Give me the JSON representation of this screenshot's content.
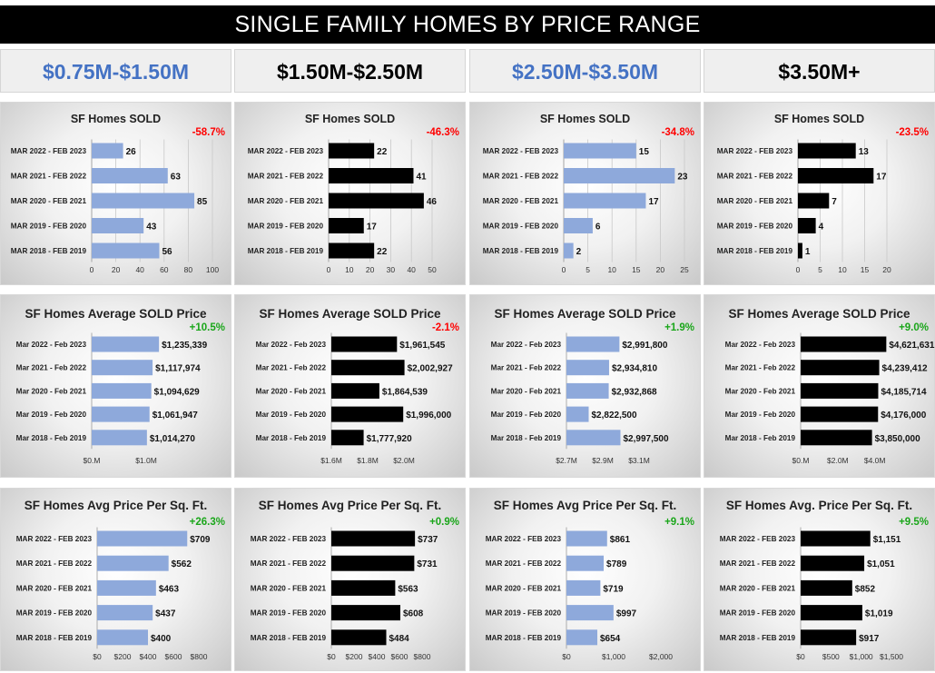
{
  "title": "SINGLE FAMILY HOMES BY PRICE RANGE",
  "colors": {
    "blue_bar": "#8ea9db",
    "black_bar": "#000000",
    "header_blue": "#4472c4",
    "negative": "#ff0000",
    "positive": "#1aa61a"
  },
  "headers": [
    {
      "label": "$0.75M-$1.50M",
      "color": "blue"
    },
    {
      "label": "$1.50M-$2.50M",
      "color": "black"
    },
    {
      "label": "$2.50M-$3.50M",
      "color": "blue"
    },
    {
      "label": "$3.50M+",
      "color": "black"
    }
  ],
  "chart_data": [
    {
      "type": "bar",
      "orientation": "horizontal",
      "title": "SF Homes SOLD",
      "change": "-58.7%",
      "categories": [
        "MAR 2022 - FEB 2023",
        "MAR 2021 - FEB 2022",
        "MAR 2020 - FEB 2021",
        "MAR 2019 - FEB 2020",
        "MAR 2018 - FEB 2019"
      ],
      "values": [
        26,
        63,
        85,
        43,
        56
      ],
      "labels": [
        "26",
        "63",
        "85",
        "43",
        "56"
      ],
      "xlim": [
        0,
        100
      ],
      "xticks": [
        0,
        20,
        40,
        60,
        80,
        100
      ],
      "xtick_labels": [
        "0",
        "20",
        "40",
        "60",
        "80",
        "100"
      ],
      "grid": true,
      "bar_color": "blue"
    },
    {
      "type": "bar",
      "orientation": "horizontal",
      "title": "SF Homes SOLD",
      "change": "-46.3%",
      "categories": [
        "MAR 2022 - FEB 2023",
        "MAR 2021 - FEB 2022",
        "MAR 2020 - FEB 2021",
        "MAR 2019 - FEB 2020",
        "MAR 2018 - FEB 2019"
      ],
      "values": [
        22,
        41,
        46,
        17,
        22
      ],
      "labels": [
        "22",
        "41",
        "46",
        "17",
        "22"
      ],
      "xlim": [
        0,
        50
      ],
      "xticks": [
        0,
        10,
        20,
        30,
        40,
        50
      ],
      "xtick_labels": [
        "0",
        "10",
        "20",
        "30",
        "40",
        "50"
      ],
      "grid": true,
      "bar_color": "black"
    },
    {
      "type": "bar",
      "orientation": "horizontal",
      "title": "SF Homes SOLD",
      "change": "-34.8%",
      "categories": [
        "MAR 2022 - FEB 2023",
        "MAR 2021 - FEB 2022",
        "MAR 2020 - FEB 2021",
        "MAR 2019 - FEB 2020",
        "MAR 2018 - FEB 2019"
      ],
      "values": [
        15,
        23,
        17,
        6,
        2
      ],
      "labels": [
        "15",
        "23",
        "17",
        "6",
        "2"
      ],
      "xlim": [
        0,
        25
      ],
      "xticks": [
        0,
        5,
        10,
        15,
        20,
        25
      ],
      "xtick_labels": [
        "0",
        "5",
        "10",
        "15",
        "20",
        "25"
      ],
      "grid": true,
      "bar_color": "blue"
    },
    {
      "type": "bar",
      "orientation": "horizontal",
      "title": "SF Homes SOLD",
      "change": "-23.5%",
      "categories": [
        "MAR 2022 - FEB 2023",
        "MAR 2021 - FEB 2022",
        "MAR 2020 - FEB 2021",
        "MAR 2019 - FEB 2020",
        "MAR 2018 - FEB 2019"
      ],
      "values": [
        13,
        17,
        7,
        4,
        1
      ],
      "labels": [
        "13",
        "17",
        "7",
        "4",
        "1"
      ],
      "xlim": [
        0,
        20
      ],
      "xticks": [
        0,
        5,
        10,
        15,
        20
      ],
      "xtick_labels": [
        "0",
        "5",
        "10",
        "15",
        "20"
      ],
      "grid": true,
      "bar_color": "black"
    },
    {
      "type": "bar",
      "orientation": "horizontal",
      "title": "SF Homes Average SOLD Price",
      "change": "+10.5%",
      "categories": [
        "Mar 2022 - Feb 2023",
        "Mar 2021 - Feb 2022",
        "Mar 2020 - Feb 2021",
        "Mar 2019 - Feb 2020",
        "Mar 2018 - Feb 2019"
      ],
      "values": [
        1235339,
        1117974,
        1094629,
        1061947,
        1014270
      ],
      "labels": [
        "$1,235,339",
        "$1,117,974",
        "$1,094,629",
        "$1,061,947",
        "$1,014,270"
      ],
      "xlim": [
        0,
        1300000
      ],
      "xticks": [
        0,
        1000000
      ],
      "xtick_labels": [
        "$0.M",
        "$1.0M"
      ],
      "grid": false,
      "bar_color": "blue"
    },
    {
      "type": "bar",
      "orientation": "horizontal",
      "title": "SF Homes Average SOLD Price",
      "change": "-2.1%",
      "categories": [
        "Mar 2022 - Feb 2023",
        "Mar 2021 - Feb 2022",
        "Mar 2020 - Feb 2021",
        "Mar 2019 - Feb 2020",
        "Mar 2018 - Feb 2019"
      ],
      "values": [
        1961545,
        2002927,
        1864539,
        1996000,
        1777920
      ],
      "labels": [
        "$1,961,545",
        "$2,002,927",
        "$1,864,539",
        "$1,996,000",
        "$1,777,920"
      ],
      "xlim": [
        1600000,
        2000000
      ],
      "xticks": [
        1600000,
        1800000,
        2000000
      ],
      "xtick_labels": [
        "$1.6M",
        "$1.8M",
        "$2.0M"
      ],
      "grid": false,
      "bar_color": "black"
    },
    {
      "type": "bar",
      "orientation": "horizontal",
      "title": "SF Homes Average SOLD Price",
      "change": "+1.9%",
      "categories": [
        "Mar 2022 - Feb 2023",
        "Mar 2021 - Feb 2022",
        "Mar 2020 - Feb 2021",
        "Mar 2019 - Feb 2020",
        "Mar 2018 - Feb 2019"
      ],
      "values": [
        2991800,
        2934810,
        2932868,
        2822500,
        2997500
      ],
      "labels": [
        "$2,991,800",
        "$2,934,810",
        "$2,932,868",
        "$2,822,500",
        "$2,997,500"
      ],
      "xlim": [
        2700000,
        3100000
      ],
      "xticks": [
        2700000,
        2900000,
        3100000
      ],
      "xtick_labels": [
        "$2.7M",
        "$2.9M",
        "$3.1M"
      ],
      "grid": false,
      "bar_color": "blue"
    },
    {
      "type": "bar",
      "orientation": "horizontal",
      "title": "SF Homes Average SOLD Price",
      "change": "+9.0%",
      "categories": [
        "Mar 2022 - Feb 2023",
        "Mar 2021 - Feb 2022",
        "Mar 2020 - Feb 2021",
        "Mar 2019 - Feb 2020",
        "Mar 2018 - Feb 2019"
      ],
      "values": [
        4621631,
        4239412,
        4185714,
        4176000,
        3850000
      ],
      "labels": [
        "$4,621,631",
        "$4,239,412",
        "$4,185,714",
        "$4,176,000",
        "$3,850,000"
      ],
      "xlim": [
        0,
        4800000
      ],
      "xticks": [
        0,
        2000000,
        4000000
      ],
      "xtick_labels": [
        "$0.M",
        "$2.0M",
        "$4.0M"
      ],
      "grid": false,
      "bar_color": "black"
    },
    {
      "type": "bar",
      "orientation": "horizontal",
      "title": "SF Homes Avg Price Per Sq. Ft.",
      "change": "+26.3%",
      "categories": [
        "MAR 2022 - FEB 2023",
        "MAR 2021 - FEB 2022",
        "MAR 2020 - FEB 2021",
        "MAR 2019 - FEB 2020",
        "MAR 2018 - FEB 2019"
      ],
      "values": [
        709,
        562,
        463,
        437,
        400
      ],
      "labels": [
        "$709",
        "$562",
        "$463",
        "$437",
        "$400"
      ],
      "xlim": [
        0,
        800
      ],
      "xticks": [
        0,
        200,
        400,
        600,
        800
      ],
      "xtick_labels": [
        "$0",
        "$200",
        "$400",
        "$600",
        "$800"
      ],
      "grid": false,
      "bar_color": "blue"
    },
    {
      "type": "bar",
      "orientation": "horizontal",
      "title": "SF Homes Avg Price Per Sq. Ft.",
      "change": "+0.9%",
      "categories": [
        "MAR 2022 - FEB 2023",
        "MAR 2021 - FEB 2022",
        "MAR 2020 - FEB 2021",
        "MAR 2019 - FEB 2020",
        "MAR 2018 - FEB 2019"
      ],
      "values": [
        737,
        731,
        563,
        608,
        484
      ],
      "labels": [
        "$737",
        "$731",
        "$563",
        "$608",
        "$484"
      ],
      "xlim": [
        0,
        800
      ],
      "xticks": [
        0,
        200,
        400,
        600,
        800
      ],
      "xtick_labels": [
        "$0",
        "$200",
        "$400",
        "$600",
        "$800"
      ],
      "grid": false,
      "bar_color": "black"
    },
    {
      "type": "bar",
      "orientation": "horizontal",
      "title": "SF Homes Avg Price Per Sq. Ft.",
      "change": "+9.1%",
      "categories": [
        "MAR 2022 - FEB 2023",
        "MAR 2021 - FEB 2022",
        "MAR 2020 - FEB 2021",
        "MAR 2019 - FEB 2020",
        "MAR 2018 - FEB 2019"
      ],
      "values": [
        861,
        789,
        719,
        997,
        654
      ],
      "labels": [
        "$861",
        "$789",
        "$719",
        "$997",
        "$654"
      ],
      "xlim": [
        0,
        2000
      ],
      "xticks": [
        0,
        1000,
        2000
      ],
      "xtick_labels": [
        "$0",
        "$1,000",
        "$2,000"
      ],
      "grid": false,
      "bar_color": "blue"
    },
    {
      "type": "bar",
      "orientation": "horizontal",
      "title": "SF Homes Avg. Price Per Sq. Ft.",
      "change": "+9.5%",
      "categories": [
        "MAR 2022 - FEB 2023",
        "MAR 2021 - FEB 2022",
        "MAR 2020 - FEB 2021",
        "MAR 2019 - FEB 2020",
        "MAR 2018 - FEB 2019"
      ],
      "values": [
        1151,
        1051,
        852,
        1019,
        917
      ],
      "labels": [
        "$1,151",
        "$1,051",
        "$852",
        "$1,019",
        "$917"
      ],
      "xlim": [
        0,
        1500
      ],
      "xticks": [
        0,
        500,
        1000,
        1500
      ],
      "xtick_labels": [
        "$0",
        "$500",
        "$1,000",
        "$1,500"
      ],
      "grid": false,
      "bar_color": "black"
    }
  ]
}
